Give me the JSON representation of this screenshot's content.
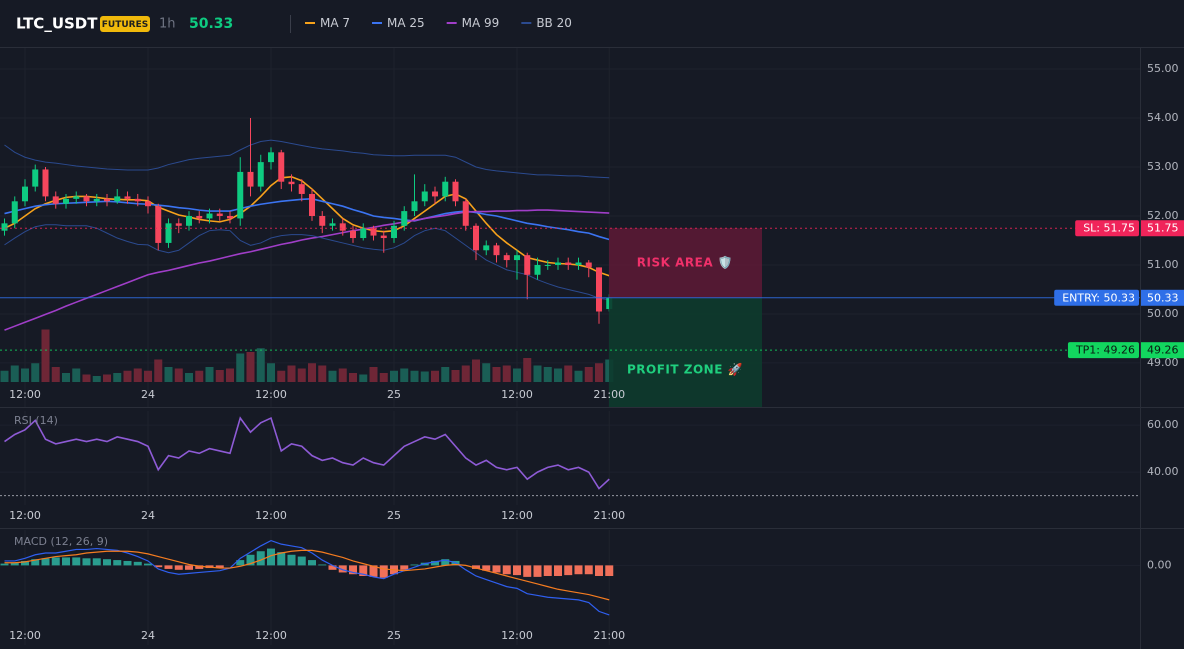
{
  "header": {
    "symbol": "LTC_USDT",
    "badge": "FUTURES",
    "interval": "1h",
    "price": 50.33
  },
  "chart_data": [
    {
      "type": "candlestick",
      "categories": [
        null,
        null,
        "12:00",
        null,
        null,
        null,
        null,
        null,
        null,
        null,
        null,
        null,
        null,
        null,
        "24",
        null,
        null,
        null,
        null,
        null,
        null,
        null,
        null,
        null,
        null,
        null,
        "12:00",
        null,
        null,
        null,
        null,
        null,
        null,
        null,
        null,
        null,
        null,
        null,
        "25",
        null,
        null,
        null,
        null,
        null,
        null,
        null,
        null,
        null,
        null,
        null,
        "12:00",
        null,
        null,
        null,
        null,
        null,
        null,
        null,
        null,
        "21:00"
      ],
      "open": [
        51.7,
        51.85,
        52.3,
        52.6,
        52.95,
        52.4,
        52.25,
        52.35,
        52.4,
        52.3,
        52.35,
        52.3,
        52.4,
        52.35,
        52.3,
        52.2,
        51.45,
        51.85,
        51.8,
        52.0,
        51.95,
        52.05,
        52.0,
        51.95,
        52.9,
        52.6,
        53.1,
        53.3,
        52.7,
        52.65,
        52.45,
        52.0,
        51.8,
        51.85,
        51.7,
        51.55,
        51.75,
        51.6,
        51.55,
        51.8,
        52.1,
        52.3,
        52.5,
        52.4,
        52.7,
        52.3,
        51.8,
        51.3,
        51.4,
        51.2,
        51.1,
        51.2,
        50.8,
        51.0,
        51.0,
        51.05,
        51.0,
        51.05,
        50.95,
        50.1
      ],
      "high": [
        51.95,
        52.4,
        52.75,
        53.05,
        53.0,
        52.5,
        52.45,
        52.5,
        52.45,
        52.45,
        52.45,
        52.55,
        52.5,
        52.45,
        52.4,
        52.25,
        51.95,
        51.95,
        52.1,
        52.1,
        52.15,
        52.15,
        52.1,
        53.2,
        54.0,
        53.25,
        53.4,
        53.35,
        52.85,
        52.75,
        52.55,
        52.1,
        51.95,
        51.95,
        51.8,
        51.85,
        51.8,
        51.7,
        51.9,
        52.2,
        52.85,
        52.65,
        52.6,
        52.8,
        52.75,
        52.35,
        51.85,
        51.5,
        51.45,
        51.25,
        51.3,
        51.25,
        51.15,
        51.1,
        51.15,
        51.15,
        51.15,
        51.1,
        50.95,
        50.4
      ],
      "low": [
        51.6,
        51.75,
        52.2,
        52.5,
        52.3,
        52.15,
        52.15,
        52.25,
        52.2,
        52.2,
        52.2,
        52.25,
        52.25,
        52.2,
        52.05,
        51.3,
        51.35,
        51.65,
        51.7,
        51.85,
        51.85,
        51.9,
        51.85,
        51.8,
        52.4,
        52.5,
        52.95,
        52.55,
        52.5,
        52.3,
        51.9,
        51.65,
        51.7,
        51.6,
        51.45,
        51.5,
        51.5,
        51.25,
        51.45,
        51.7,
        52.0,
        52.2,
        52.25,
        52.3,
        52.2,
        51.7,
        51.1,
        51.2,
        51.05,
        50.95,
        50.7,
        50.3,
        50.7,
        50.9,
        50.9,
        50.9,
        50.9,
        50.75,
        49.8,
        50.05
      ],
      "close": [
        51.85,
        52.3,
        52.6,
        52.95,
        52.4,
        52.25,
        52.35,
        52.4,
        52.3,
        52.35,
        52.3,
        52.4,
        52.35,
        52.3,
        52.2,
        51.45,
        51.85,
        51.8,
        52.0,
        51.95,
        52.05,
        52.0,
        51.95,
        52.9,
        52.6,
        53.1,
        53.3,
        52.7,
        52.65,
        52.45,
        52.0,
        51.8,
        51.85,
        51.7,
        51.55,
        51.75,
        51.6,
        51.55,
        51.8,
        52.1,
        52.3,
        52.5,
        52.4,
        52.7,
        52.3,
        51.8,
        51.3,
        51.4,
        51.2,
        51.1,
        51.2,
        50.8,
        51.0,
        51.0,
        51.05,
        51.0,
        51.05,
        50.95,
        50.05,
        50.33
      ],
      "up_color": "#0ecb81",
      "down_color": "#f6465d",
      "volume": {
        "values": [
          15,
          22,
          18,
          25,
          70,
          20,
          12,
          18,
          10,
          8,
          10,
          12,
          15,
          18,
          15,
          30,
          20,
          18,
          12,
          15,
          20,
          16,
          18,
          38,
          40,
          45,
          25,
          15,
          22,
          18,
          25,
          22,
          15,
          18,
          12,
          10,
          20,
          12,
          15,
          18,
          15,
          14,
          15,
          20,
          16,
          22,
          30,
          25,
          20,
          22,
          18,
          32,
          22,
          20,
          18,
          22,
          15,
          20,
          25,
          30
        ],
        "ylim": [
          0,
          100
        ],
        "up_color": "#1a5e55",
        "down_color": "#6e2636"
      },
      "series": [
        {
          "name": "MA 7",
          "color": "#f7a21b",
          "values": [
            51.75,
            51.85,
            52.0,
            52.15,
            52.25,
            52.32,
            52.38,
            52.4,
            52.4,
            52.38,
            52.35,
            52.34,
            52.33,
            52.33,
            52.31,
            52.18,
            52.1,
            52.02,
            51.98,
            51.93,
            51.9,
            51.88,
            51.93,
            52.05,
            52.2,
            52.4,
            52.62,
            52.78,
            52.8,
            52.72,
            52.55,
            52.35,
            52.15,
            51.95,
            51.82,
            51.75,
            51.7,
            51.68,
            51.7,
            51.8,
            51.95,
            52.1,
            52.25,
            52.4,
            52.45,
            52.35,
            52.1,
            51.85,
            51.62,
            51.45,
            51.3,
            51.15,
            51.1,
            51.05,
            51.03,
            51.02,
            51.0,
            50.95,
            50.85,
            50.78
          ]
        },
        {
          "name": "MA 25",
          "color": "#3b74f2",
          "values": [
            52.05,
            52.1,
            52.15,
            52.2,
            52.23,
            52.25,
            52.26,
            52.27,
            52.28,
            52.29,
            52.3,
            52.29,
            52.27,
            52.25,
            52.24,
            52.22,
            52.2,
            52.17,
            52.15,
            52.12,
            52.1,
            52.1,
            52.1,
            52.15,
            52.2,
            52.24,
            52.27,
            52.3,
            52.32,
            52.34,
            52.35,
            52.3,
            52.25,
            52.2,
            52.13,
            52.07,
            52.0,
            51.97,
            51.95,
            51.92,
            51.9,
            51.95,
            52.0,
            52.05,
            52.08,
            52.1,
            52.07,
            52.03,
            52.0,
            51.95,
            51.9,
            51.85,
            51.82,
            51.78,
            51.75,
            51.72,
            51.68,
            51.65,
            51.58,
            51.52
          ]
        },
        {
          "name": "MA 99",
          "color": "#a03ec8",
          "values": [
            49.67,
            49.75,
            49.83,
            49.91,
            49.99,
            50.07,
            50.16,
            50.24,
            50.32,
            50.4,
            50.48,
            50.56,
            50.64,
            50.72,
            50.8,
            50.85,
            50.89,
            50.94,
            50.99,
            51.04,
            51.08,
            51.13,
            51.18,
            51.23,
            51.27,
            51.32,
            51.37,
            51.42,
            51.46,
            51.51,
            51.55,
            51.58,
            51.62,
            51.66,
            51.7,
            51.73,
            51.77,
            51.81,
            51.84,
            51.88,
            51.91,
            51.95,
            51.98,
            52.01,
            52.05,
            52.08,
            52.09,
            52.09,
            52.1,
            52.1,
            52.11,
            52.11,
            52.12,
            52.12,
            52.11,
            52.1,
            52.09,
            52.08,
            52.07,
            52.06
          ]
        },
        {
          "name": "BB 20",
          "color": "#2b4a8f",
          "upper": [
            53.45,
            53.3,
            53.2,
            53.14,
            53.1,
            53.08,
            53.05,
            53.02,
            53.0,
            52.98,
            52.96,
            52.95,
            52.94,
            52.94,
            52.94,
            52.98,
            53.05,
            53.1,
            53.15,
            53.18,
            53.2,
            53.22,
            53.24,
            53.35,
            53.45,
            53.52,
            53.55,
            53.52,
            53.48,
            53.44,
            53.4,
            53.37,
            53.35,
            53.33,
            53.3,
            53.28,
            53.25,
            53.24,
            53.23,
            53.23,
            53.24,
            53.24,
            53.24,
            53.24,
            53.2,
            53.1,
            53.0,
            52.95,
            52.92,
            52.9,
            52.88,
            52.86,
            52.84,
            52.84,
            52.83,
            52.82,
            52.82,
            52.8,
            52.79,
            52.78
          ],
          "lower": [
            51.41,
            51.55,
            51.68,
            51.78,
            51.82,
            51.82,
            51.8,
            51.8,
            51.8,
            51.75,
            51.65,
            51.55,
            51.48,
            51.42,
            51.41,
            51.3,
            51.25,
            51.3,
            51.45,
            51.6,
            51.7,
            51.72,
            51.7,
            51.5,
            51.4,
            51.45,
            51.55,
            51.6,
            51.62,
            51.62,
            51.6,
            51.55,
            51.5,
            51.45,
            51.4,
            51.35,
            51.32,
            51.3,
            51.35,
            51.45,
            51.6,
            51.7,
            51.75,
            51.7,
            51.55,
            51.4,
            51.25,
            51.1,
            51.0,
            50.9,
            50.85,
            50.8,
            50.7,
            50.62,
            50.55,
            50.5,
            50.45,
            50.4,
            50.32,
            50.29
          ]
        }
      ],
      "ylim": [
        48.1,
        55.43
      ],
      "yticks": [
        {
          "value": 55,
          "label": "55.00"
        },
        {
          "value": 54,
          "label": "54.00"
        },
        {
          "value": 53,
          "label": "53.00"
        },
        {
          "value": 52,
          "label": "52.00"
        },
        {
          "value": 51,
          "label": "51.00"
        },
        {
          "value": 50,
          "label": "50.00"
        },
        {
          "value": 49,
          "label": "49.00"
        }
      ],
      "grid": true,
      "levels": [
        {
          "label": "SL: 51.75",
          "value": 51.75,
          "color": "#f0245a",
          "style": "dotted"
        },
        {
          "label": "ENTRY: 50.33",
          "value": 50.33,
          "color": "#2f6fe8",
          "style": "solid"
        },
        {
          "label": "TP1: 49.26",
          "value": 49.26,
          "color": "#12d65f",
          "style": "dotted"
        }
      ],
      "zones": [
        {
          "label": "RISK AREA 🛡️",
          "from": 51.75,
          "to": 50.33,
          "color": "#f0306a",
          "fill": "#5a1a35"
        },
        {
          "label": "PROFIT ZONE 🚀",
          "from": 50.33,
          "color": "#1fcf7e",
          "fill": "#0d3b2d"
        }
      ]
    },
    {
      "type": "line",
      "title": "RSI (14)",
      "categories": [
        null,
        null,
        "12:00",
        null,
        null,
        null,
        null,
        null,
        null,
        null,
        null,
        null,
        null,
        null,
        "24",
        null,
        null,
        null,
        null,
        null,
        null,
        null,
        null,
        null,
        null,
        null,
        "12:00",
        null,
        null,
        null,
        null,
        null,
        null,
        null,
        null,
        null,
        null,
        null,
        "25",
        null,
        null,
        null,
        null,
        null,
        null,
        null,
        null,
        null,
        null,
        null,
        "12:00",
        null,
        null,
        null,
        null,
        null,
        null,
        null,
        null,
        "21:00"
      ],
      "values": [
        53,
        56,
        58,
        62,
        54,
        52,
        53,
        54,
        53,
        54,
        53,
        55,
        54,
        53,
        51,
        41,
        47,
        46,
        49,
        48,
        50,
        49,
        48,
        63,
        57,
        61,
        63,
        49,
        52,
        51,
        47,
        45,
        46,
        44,
        43,
        46,
        44,
        43,
        47,
        51,
        53,
        55,
        54,
        56,
        51,
        46,
        43,
        45,
        42,
        41,
        42,
        37,
        40,
        42,
        43,
        41,
        42,
        40,
        33,
        37
      ],
      "color": "#8e5bd6",
      "ylim": [
        26,
        66
      ],
      "yticks": [
        {
          "value": 60,
          "label": "60.00"
        },
        {
          "value": 40,
          "label": "40.00"
        }
      ],
      "oversold": 30
    },
    {
      "type": "macd",
      "title": "MACD (12, 26, 9)",
      "categories": [
        null,
        null,
        "12:00",
        null,
        null,
        null,
        null,
        null,
        null,
        null,
        null,
        null,
        null,
        null,
        "24",
        null,
        null,
        null,
        null,
        null,
        null,
        null,
        null,
        null,
        null,
        null,
        "12:00",
        null,
        null,
        null,
        null,
        null,
        null,
        null,
        null,
        null,
        null,
        null,
        "25",
        null,
        null,
        null,
        null,
        null,
        null,
        null,
        null,
        null,
        null,
        null,
        "12:00",
        null,
        null,
        null,
        null,
        null,
        null,
        null,
        null,
        "21:00"
      ],
      "macd": [
        0.05,
        0.05,
        0.08,
        0.12,
        0.14,
        0.14,
        0.16,
        0.18,
        0.18,
        0.19,
        0.18,
        0.17,
        0.14,
        0.1,
        0.05,
        -0.04,
        -0.08,
        -0.1,
        -0.09,
        -0.08,
        -0.07,
        -0.06,
        -0.03,
        0.08,
        0.15,
        0.22,
        0.28,
        0.24,
        0.22,
        0.2,
        0.14,
        0.06,
        0.0,
        -0.05,
        -0.08,
        -0.1,
        -0.13,
        -0.15,
        -0.1,
        -0.06,
        -0.02,
        0.02,
        0.04,
        0.06,
        0.03,
        -0.05,
        -0.12,
        -0.16,
        -0.2,
        -0.24,
        -0.26,
        -0.32,
        -0.34,
        -0.36,
        -0.37,
        -0.38,
        -0.39,
        -0.42,
        -0.52,
        -0.56
      ],
      "signal": [
        0.03,
        0.03,
        0.04,
        0.06,
        0.08,
        0.1,
        0.11,
        0.12,
        0.14,
        0.15,
        0.16,
        0.16,
        0.16,
        0.15,
        0.13,
        0.1,
        0.07,
        0.04,
        0.01,
        -0.01,
        -0.02,
        -0.03,
        -0.03,
        -0.01,
        0.02,
        0.06,
        0.11,
        0.14,
        0.16,
        0.17,
        0.17,
        0.15,
        0.12,
        0.09,
        0.05,
        0.02,
        -0.01,
        -0.04,
        -0.05,
        -0.06,
        -0.05,
        -0.04,
        -0.02,
        0.0,
        0.01,
        0.0,
        -0.03,
        -0.06,
        -0.09,
        -0.12,
        -0.15,
        -0.18,
        -0.21,
        -0.24,
        -0.27,
        -0.29,
        -0.31,
        -0.33,
        -0.36,
        -0.39
      ],
      "histogram": [
        0.02,
        0.03,
        0.05,
        0.07,
        0.08,
        0.09,
        0.09,
        0.09,
        0.08,
        0.08,
        0.07,
        0.06,
        0.05,
        0.04,
        0.02,
        -0.02,
        -0.04,
        -0.05,
        -0.05,
        -0.04,
        -0.03,
        -0.03,
        0.0,
        0.06,
        0.12,
        0.16,
        0.19,
        0.15,
        0.12,
        0.1,
        0.06,
        0.01,
        -0.05,
        -0.08,
        -0.1,
        -0.12,
        -0.13,
        -0.14,
        -0.1,
        -0.05,
        0.01,
        0.03,
        0.05,
        0.07,
        0.05,
        0.0,
        -0.04,
        -0.06,
        -0.08,
        -0.1,
        -0.11,
        -0.13,
        -0.13,
        -0.12,
        -0.12,
        -0.11,
        -0.1,
        -0.1,
        -0.12,
        -0.12
      ],
      "macd_color": "#2f5ff0",
      "signal_color": "#f57c20",
      "hist_up_color": "#2a9d8f",
      "hist_down_color": "#f0705a",
      "ylim": [
        -0.9,
        0.4
      ],
      "yticks": [
        {
          "value": 0,
          "label": "0.00"
        }
      ]
    }
  ]
}
